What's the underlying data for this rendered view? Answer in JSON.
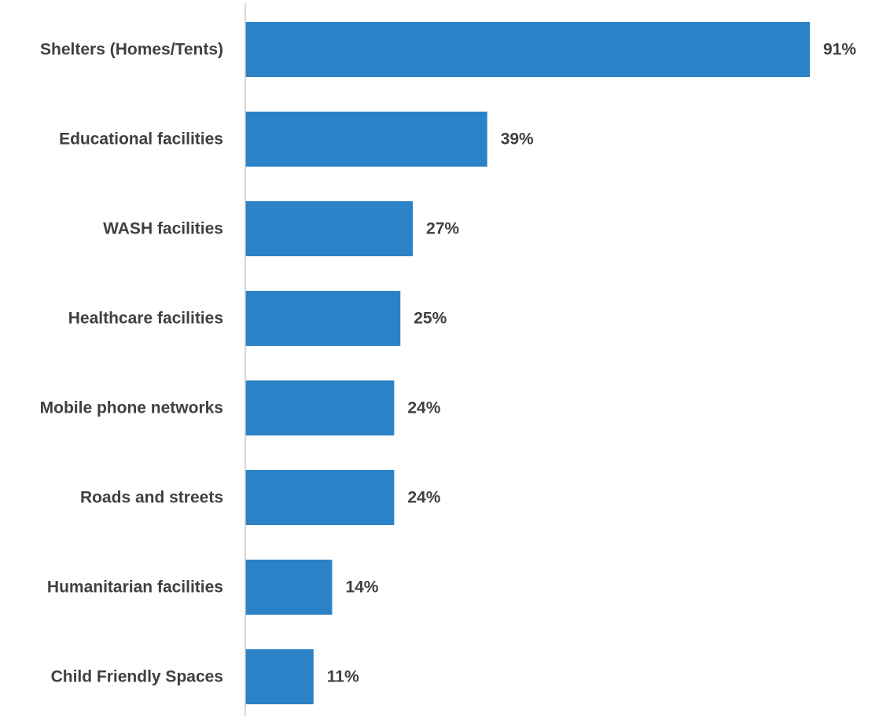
{
  "chart_data": {
    "type": "bar",
    "orientation": "horizontal",
    "title": "",
    "xlabel": "",
    "ylabel": "",
    "xlim": [
      0,
      100
    ],
    "grid": false,
    "legend": "none",
    "categories": [
      "Shelters (Homes/Tents)",
      "Educational facilities",
      "WASH facilities",
      "Healthcare facilities",
      "Mobile phone networks",
      "Roads and streets",
      "Humanitarian facilities",
      "Child Friendly Spaces"
    ],
    "values": [
      91,
      39,
      27,
      25,
      24,
      24,
      14,
      11
    ],
    "value_labels": [
      "91%",
      "39%",
      "27%",
      "25%",
      "24%",
      "24%",
      "14%",
      "11%"
    ],
    "colors": {
      "bar": "#2b82c6",
      "text": "#404040",
      "axis": "#c8c8c8"
    }
  }
}
